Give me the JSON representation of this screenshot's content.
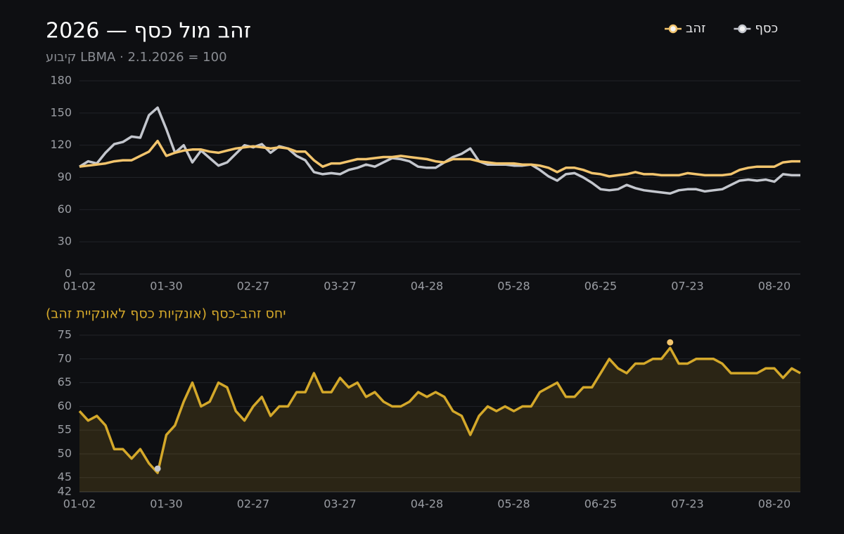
{
  "chart_data": [
    {
      "type": "line",
      "title": "זהב מול כסף — 2026",
      "subtitle": "קיבוע LBMA · 2.1.2026 = 100",
      "categories": [
        "01-02",
        null,
        null,
        null,
        null,
        null,
        null,
        null,
        null,
        null,
        "01-30",
        null,
        null,
        null,
        null,
        null,
        null,
        null,
        null,
        null,
        "02-27",
        null,
        null,
        null,
        null,
        null,
        null,
        null,
        null,
        null,
        "03-27",
        null,
        null,
        null,
        null,
        null,
        null,
        null,
        null,
        null,
        "04-28",
        null,
        null,
        null,
        null,
        null,
        null,
        null,
        null,
        null,
        "05-28",
        null,
        null,
        null,
        null,
        null,
        null,
        null,
        null,
        null,
        "06-25",
        null,
        null,
        null,
        null,
        null,
        null,
        null,
        null,
        null,
        "07-23",
        null,
        null,
        null,
        null,
        null,
        null,
        null,
        null,
        null,
        "08-20",
        null,
        null,
        null
      ],
      "series": [
        {
          "name": "זהב",
          "color": "#f2c46d",
          "values": [
            100,
            101,
            102,
            103,
            105,
            106,
            106,
            110,
            114,
            124,
            110,
            113,
            115,
            116,
            116,
            114,
            113,
            115,
            117,
            118,
            119,
            118,
            117,
            118,
            117,
            114,
            114,
            106,
            100,
            103,
            103,
            105,
            107,
            107,
            108,
            109,
            109,
            110,
            109,
            108,
            107,
            105,
            104,
            107,
            107,
            107,
            105,
            104,
            103,
            103,
            103,
            102,
            102,
            101,
            99,
            95,
            99,
            99,
            97,
            94,
            93,
            91,
            92,
            93,
            95,
            93,
            93,
            92,
            92,
            92,
            94,
            93,
            92,
            92,
            92,
            93,
            97,
            99,
            100,
            100,
            100,
            104,
            105,
            105
          ]
        },
        {
          "name": "כסף",
          "color": "#c3c6cd",
          "values": [
            100,
            105,
            103,
            113,
            121,
            123,
            128,
            127,
            148,
            155,
            135,
            113,
            120,
            104,
            115,
            108,
            101,
            104,
            112,
            120,
            118,
            121,
            113,
            119,
            117,
            110,
            106,
            95,
            93,
            94,
            93,
            97,
            99,
            102,
            100,
            104,
            108,
            107,
            105,
            100,
            99,
            99,
            104,
            109,
            112,
            117,
            105,
            102,
            102,
            102,
            101,
            101,
            102,
            97,
            91,
            87,
            93,
            94,
            90,
            85,
            79,
            78,
            79,
            83,
            80,
            78,
            77,
            76,
            75,
            78,
            79,
            79,
            77,
            78,
            79,
            83,
            87,
            88,
            87,
            88,
            86,
            93,
            92,
            92
          ]
        }
      ],
      "ylim": [
        0,
        180
      ],
      "yticks": [
        0,
        30,
        60,
        90,
        120,
        150,
        180
      ],
      "grid": true,
      "legend": "top-right"
    },
    {
      "type": "area",
      "title": "יחס זהב-כסף (אונקיות כסף לאונקיית זהב)",
      "categories": [
        "01-02",
        null,
        null,
        null,
        null,
        null,
        null,
        null,
        null,
        null,
        "01-30",
        null,
        null,
        null,
        null,
        null,
        null,
        null,
        null,
        null,
        "02-27",
        null,
        null,
        null,
        null,
        null,
        null,
        null,
        null,
        null,
        "03-27",
        null,
        null,
        null,
        null,
        null,
        null,
        null,
        null,
        null,
        "04-28",
        null,
        null,
        null,
        null,
        null,
        null,
        null,
        null,
        null,
        "05-28",
        null,
        null,
        null,
        null,
        null,
        null,
        null,
        null,
        null,
        "06-25",
        null,
        null,
        null,
        null,
        null,
        null,
        null,
        null,
        null,
        "07-23",
        null,
        null,
        null,
        null,
        null,
        null,
        null,
        null,
        null,
        "08-20",
        null,
        null,
        null
      ],
      "values": [
        59,
        57,
        58,
        56,
        51,
        51,
        49,
        51,
        48,
        46,
        54,
        56,
        61,
        65,
        60,
        61,
        65,
        64,
        59,
        57,
        60,
        62,
        58,
        60,
        60,
        63,
        63,
        67,
        63,
        63,
        66,
        64,
        65,
        62,
        63,
        61,
        60,
        60,
        61,
        63,
        62,
        63,
        62,
        59,
        58,
        54,
        58,
        60,
        59,
        60,
        59,
        60,
        60,
        63,
        64,
        65,
        62,
        62,
        64,
        64,
        67,
        70,
        68,
        67,
        69,
        69,
        70,
        70,
        72.3,
        69,
        69,
        70,
        70,
        70,
        69,
        67,
        67,
        67,
        67,
        68,
        68,
        66,
        68,
        67
      ],
      "color": "#d4a82a",
      "min_marker_color": "#c3c6cd",
      "max_marker_color": "#f2c46d",
      "ylim": [
        42,
        75
      ],
      "yticks": [
        42,
        45,
        50,
        55,
        60,
        65,
        70,
        75
      ],
      "grid": true
    }
  ]
}
